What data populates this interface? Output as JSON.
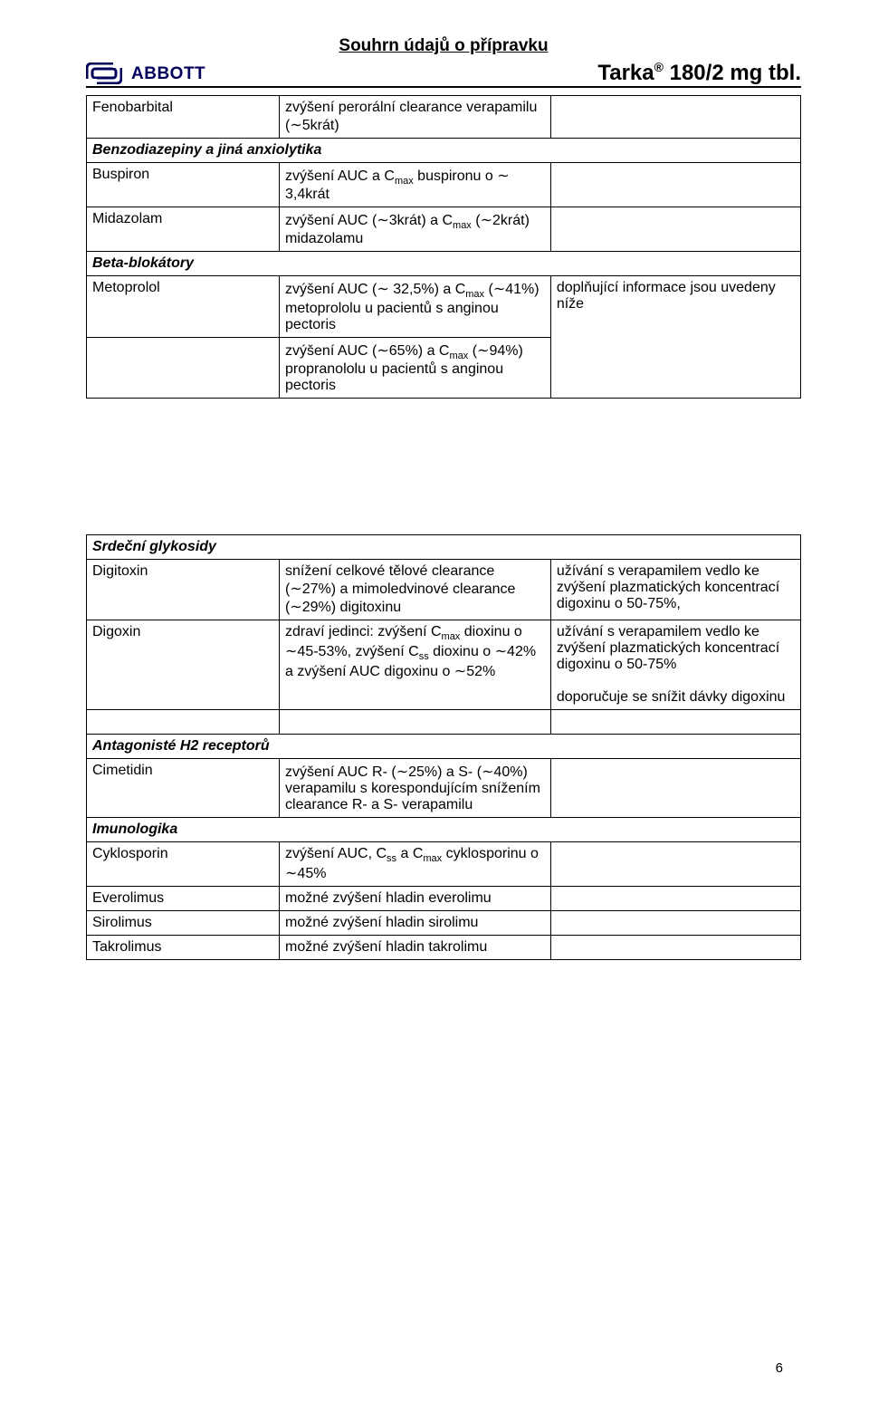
{
  "header": {
    "top_title": "Souhrn údajů o přípravku",
    "brand": "ABBOTT",
    "product_html": "Tarka<sup>®</sup> 180/2 mg tbl."
  },
  "table1": {
    "rows": [
      {
        "c1": "Fenobarbital",
        "c2_html": "zvýšení perorální clearance verapamilu (∼5krát)",
        "span": false
      },
      {
        "section": true,
        "text": "Benzodiazepiny a jiná anxiolytika"
      },
      {
        "c1": "Buspiron",
        "c2_html": "zvýšení AUC a C<span class=\"sub\">max</span> buspironu o ∼ 3,4krát",
        "span": false
      },
      {
        "c1": "Midazolam",
        "c2_html": "zvýšení AUC (∼3krát) a C<span class=\"sub\">max</span> (∼2krát) midazolamu",
        "span": false
      },
      {
        "section": true,
        "text": "Beta-blokátory"
      },
      {
        "c1": "Metoprolol",
        "c2_html": "zvýšení AUC (∼ 32,5%) a C<span class=\"sub\">max</span> (∼41%) metoprololu u&nbsp;pacientů s&nbsp;anginou pectoris",
        "c3": "doplňující informace jsou uvedeny níže",
        "c3_rowspan": 2
      },
      {
        "c1": "",
        "c2_html": "zvýšení AUC (∼65%) a C<span class=\"sub\">max</span> (∼94%) propranololu u&nbsp;pacientů s&nbsp;anginou pectoris"
      }
    ]
  },
  "table2": {
    "rows": [
      {
        "section": true,
        "text": "Srdeční glykosidy"
      },
      {
        "c1": "Digitoxin",
        "c2_html": "snížení celkové tělové clearance (∼27%) a mimoledvinové clearance (∼29%) digitoxinu",
        "c3_html": "užívání s verapamilem vedlo ke zvýšení plazmatických koncentrací digoxinu o 50-75%,"
      },
      {
        "c1": "Digoxin",
        "c2_html": "zdraví jedinci: zvýšení C<span class=\"sub\">max</span> dioxinu o ∼45-53%, zvýšení C<span class=\"sub\">ss</span> dioxinu o ∼42% a zvýšení AUC digoxinu o ∼52%",
        "c3_html": "užívání s verapamilem vedlo ke zvýšení plazmatických koncentrací digoxinu o 50-75%<br><br>doporučuje se snížit dávky digoxinu"
      },
      {
        "blank": true
      },
      {
        "section": true,
        "text": "Antagonisté H2 receptorů"
      },
      {
        "c1": "Cimetidin",
        "c2_html": "zvýšení AUC R- (∼25%) a S- (∼40%) verapamilu s&nbsp;korespondujícím snížením clearance R- a S- verapamilu",
        "c3_html": ""
      },
      {
        "section": true,
        "text": "Imunologika"
      },
      {
        "c1": "Cyklosporin",
        "c2_html": "zvýšení AUC, C<span class=\"sub\">ss</span> a C<span class=\"sub\">max</span> cyklosporinu o ∼45%",
        "c3_html": ""
      },
      {
        "c1": "Everolimus",
        "c2_html": "možné zvýšení hladin everolimu",
        "c3_html": ""
      },
      {
        "c1": "Sirolimus",
        "c2_html": "možné zvýšení hladin sirolimu",
        "c3_html": ""
      },
      {
        "c1": "Takrolimus",
        "c2_html": "možné zvýšení hladin takrolimu",
        "c3_html": ""
      }
    ]
  },
  "pagenum": "6",
  "layout": {
    "col_widths_pct": [
      27,
      38,
      35
    ]
  },
  "colors": {
    "text": "#000000",
    "brand": "#00005a",
    "background": "#ffffff",
    "border": "#000000"
  }
}
